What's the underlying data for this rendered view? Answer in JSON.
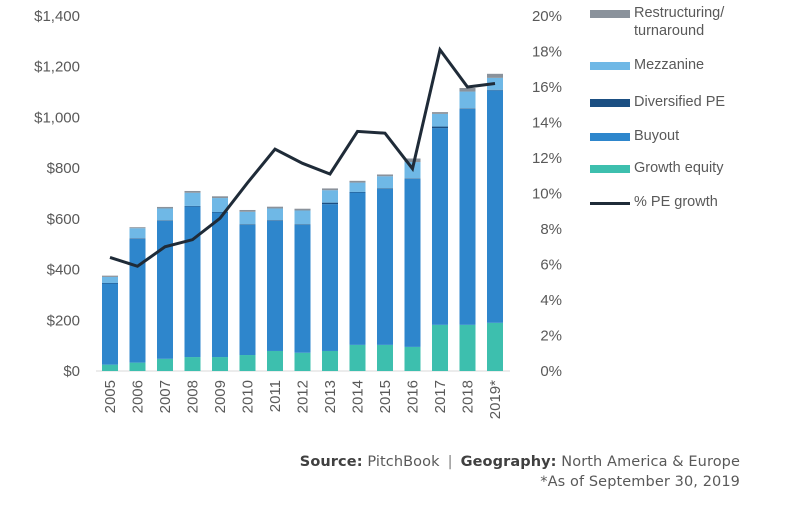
{
  "chart_data": {
    "type": "bar",
    "stacked": true,
    "title": "",
    "xlabel": "",
    "ylabel": "",
    "y2label": "",
    "categories": [
      "2005",
      "2006",
      "2007",
      "2008",
      "2009",
      "2010",
      "2011",
      "2012",
      "2013",
      "2014",
      "2015",
      "2016",
      "2017",
      "2018",
      "2019*"
    ],
    "y_ticks": [
      "$0",
      "$200",
      "$400",
      "$600",
      "$800",
      "$1,000",
      "$1,200",
      "$1,400"
    ],
    "ylim": [
      0,
      1400
    ],
    "y2_ticks": [
      "0%",
      "2%",
      "4%",
      "6%",
      "8%",
      "10%",
      "12%",
      "14%",
      "16%",
      "18%",
      "20%"
    ],
    "y2lim": [
      0,
      20
    ],
    "grid": false,
    "legend_position": "top-right",
    "series": [
      {
        "name": "Growth equity",
        "type": "bar",
        "color": "#3dbfae",
        "values": [
          25,
          33,
          48,
          55,
          55,
          63,
          79,
          72,
          79,
          103,
          103,
          95,
          182,
          182,
          190
        ]
      },
      {
        "name": "Buyout",
        "type": "bar",
        "color": "#2e86cc",
        "values": [
          320,
          488,
          544,
          594,
          570,
          513,
          514,
          504,
          579,
          601,
          615,
          663,
          776,
          852,
          917
        ]
      },
      {
        "name": "Diversified PE",
        "type": "bar",
        "color": "#1b4f82",
        "values": [
          2,
          2,
          2,
          2,
          2,
          2,
          2,
          2,
          6,
          2,
          2,
          2,
          6,
          2,
          2
        ]
      },
      {
        "name": "Mezzanine",
        "type": "bar",
        "color": "#6fb8e6",
        "values": [
          24,
          40,
          47,
          52,
          55,
          50,
          46,
          55,
          49,
          37,
          48,
          64,
          50,
          66,
          47
        ]
      },
      {
        "name": "Restructuring/ turnaround",
        "type": "bar",
        "color": "#8a929b",
        "values": [
          5,
          4,
          6,
          7,
          7,
          7,
          7,
          7,
          7,
          7,
          7,
          14,
          7,
          14,
          16
        ]
      },
      {
        "name": "% PE growth",
        "type": "line",
        "axis": "right",
        "color": "#1f2b38",
        "values": [
          6.4,
          5.9,
          7.0,
          7.4,
          8.6,
          10.6,
          12.5,
          11.7,
          11.1,
          13.5,
          13.4,
          11.4,
          18.1,
          16.0,
          16.2
        ]
      }
    ]
  },
  "legend": {
    "items": [
      {
        "label": "Restructuring/ turnaround",
        "color": "#8a929b",
        "kind": "bar"
      },
      {
        "label": "Mezzanine",
        "color": "#6fb8e6",
        "kind": "bar"
      },
      {
        "label": "Diversified PE",
        "color": "#1b4f82",
        "kind": "bar"
      },
      {
        "label": "Buyout",
        "color": "#2e86cc",
        "kind": "bar"
      },
      {
        "label": "Growth equity",
        "color": "#3dbfae",
        "kind": "bar"
      },
      {
        "label": "% PE growth",
        "color": "#1f2b38",
        "kind": "line"
      }
    ]
  },
  "footer": {
    "source_label": "Source:",
    "source_value": "PitchBook",
    "separator": "|",
    "geography_label": "Geography:",
    "geography_value": "North America & Europe",
    "note": "*As of September 30, 2019"
  }
}
